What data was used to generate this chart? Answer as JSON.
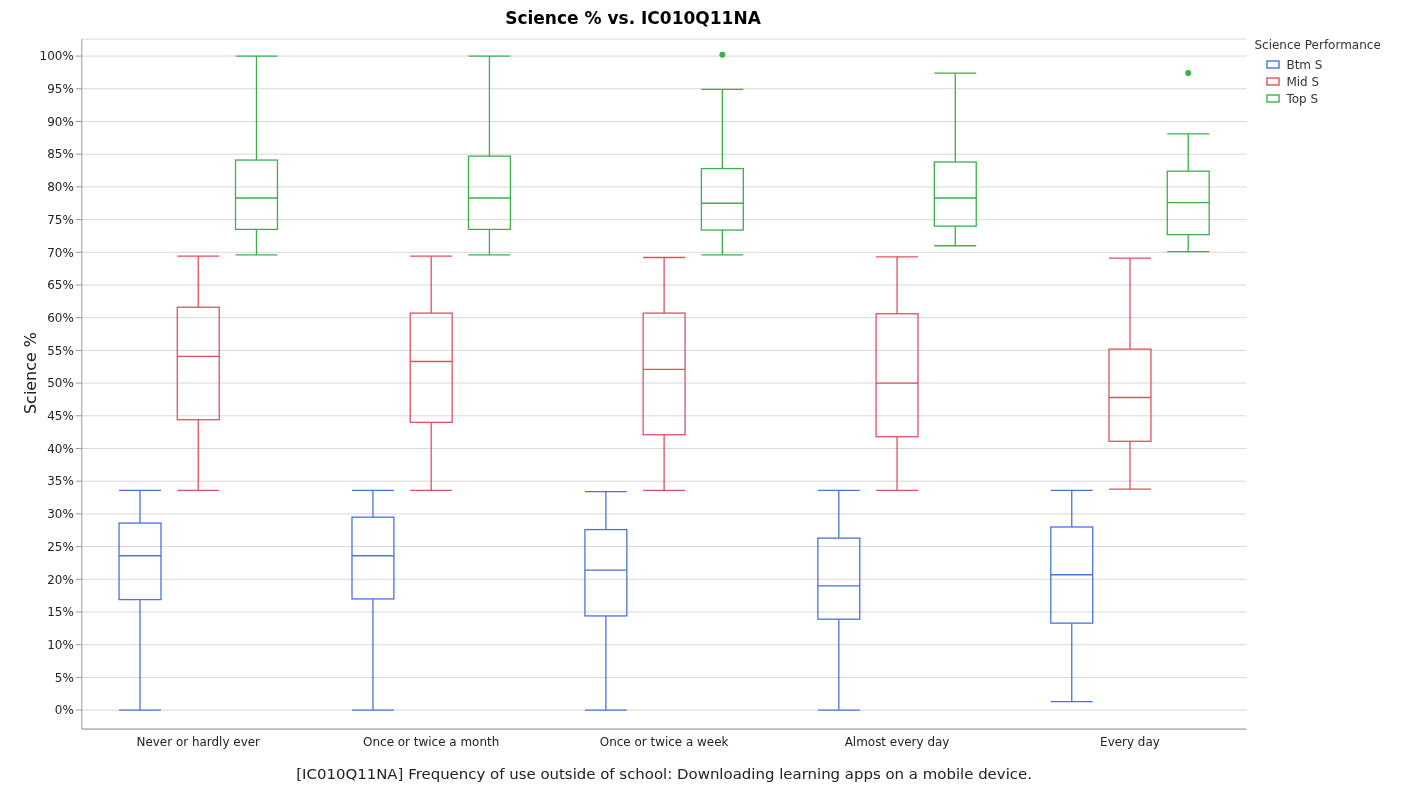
{
  "chart_data": {
    "type": "box",
    "title": "Science % vs. IC010Q11NA",
    "xlabel": "[IC010Q11NA] Frequency of use outside of school: Downloading learning apps on a mobile device.",
    "ylabel": "Science %",
    "legend_title": "Science Performance",
    "legend": "top right",
    "grid": "y",
    "categories": [
      "Never or hardly ever",
      "Once or twice a month",
      "Once or twice a week",
      "Almost every day",
      "Every day"
    ],
    "ylim": [
      -2.9,
      102.6
    ],
    "yticks": [
      {
        "value": 0,
        "label": "0%"
      },
      {
        "value": 5,
        "label": "5%"
      },
      {
        "value": 10,
        "label": "10%"
      },
      {
        "value": 15,
        "label": "15%"
      },
      {
        "value": 20,
        "label": "20%"
      },
      {
        "value": 25,
        "label": "25%"
      },
      {
        "value": 30,
        "label": "30%"
      },
      {
        "value": 35,
        "label": "35%"
      },
      {
        "value": 40,
        "label": "40%"
      },
      {
        "value": 45,
        "label": "45%"
      },
      {
        "value": 50,
        "label": "50%"
      },
      {
        "value": 55,
        "label": "55%"
      },
      {
        "value": 60,
        "label": "60%"
      },
      {
        "value": 65,
        "label": "65%"
      },
      {
        "value": 70,
        "label": "70%"
      },
      {
        "value": 75,
        "label": "75%"
      },
      {
        "value": 80,
        "label": "80%"
      },
      {
        "value": 85,
        "label": "85%"
      },
      {
        "value": 90,
        "label": "90%"
      },
      {
        "value": 95,
        "label": "95%"
      },
      {
        "value": 100,
        "label": "100%"
      }
    ],
    "series": [
      {
        "name": "Btm S",
        "color": "#4a72e0",
        "boxes": [
          {
            "low": 0,
            "q1": 16.9,
            "median": 23.6,
            "q3": 28.6,
            "high": 33.6
          },
          {
            "low": 0,
            "q1": 17,
            "median": 23.6,
            "q3": 29.5,
            "high": 33.6
          },
          {
            "low": 0,
            "q1": 14.4,
            "median": 21.4,
            "q3": 27.6,
            "high": 33.4
          },
          {
            "low": 0,
            "q1": 13.9,
            "median": 19,
            "q3": 26.3,
            "high": 33.6
          },
          {
            "low": 1.3,
            "q1": 13.3,
            "median": 20.7,
            "q3": 28,
            "high": 33.6
          }
        ]
      },
      {
        "name": "Mid S",
        "color": "#e05060",
        "boxes": [
          {
            "low": 33.6,
            "q1": 44.4,
            "median": 54.1,
            "q3": 61.6,
            "high": 69.4
          },
          {
            "low": 33.6,
            "q1": 44,
            "median": 53.3,
            "q3": 60.7,
            "high": 69.4
          },
          {
            "low": 33.6,
            "q1": 42.1,
            "median": 52.1,
            "q3": 60.7,
            "high": 69.2
          },
          {
            "low": 33.6,
            "q1": 41.8,
            "median": 50,
            "q3": 60.6,
            "high": 69.3
          },
          {
            "low": 33.8,
            "q1": 41.1,
            "median": 47.8,
            "q3": 55.2,
            "high": 69.1
          }
        ]
      },
      {
        "name": "Top S",
        "color": "#3cb04a",
        "boxes": [
          {
            "low": 69.6,
            "q1": 73.5,
            "median": 78.3,
            "q3": 84.1,
            "high": 100
          },
          {
            "low": 69.6,
            "q1": 73.5,
            "median": 78.3,
            "q3": 84.7,
            "high": 100
          },
          {
            "low": 69.6,
            "q1": 73.4,
            "median": 77.5,
            "q3": 82.8,
            "high": 94.9,
            "outliers": [
              100.2
            ]
          },
          {
            "low": 71,
            "q1": 74,
            "median": 78.3,
            "q3": 83.8,
            "high": 97.4
          },
          {
            "low": 70.1,
            "q1": 72.7,
            "median": 77.6,
            "q3": 82.4,
            "high": 88.1,
            "outliers": [
              97.4
            ]
          }
        ]
      }
    ]
  }
}
